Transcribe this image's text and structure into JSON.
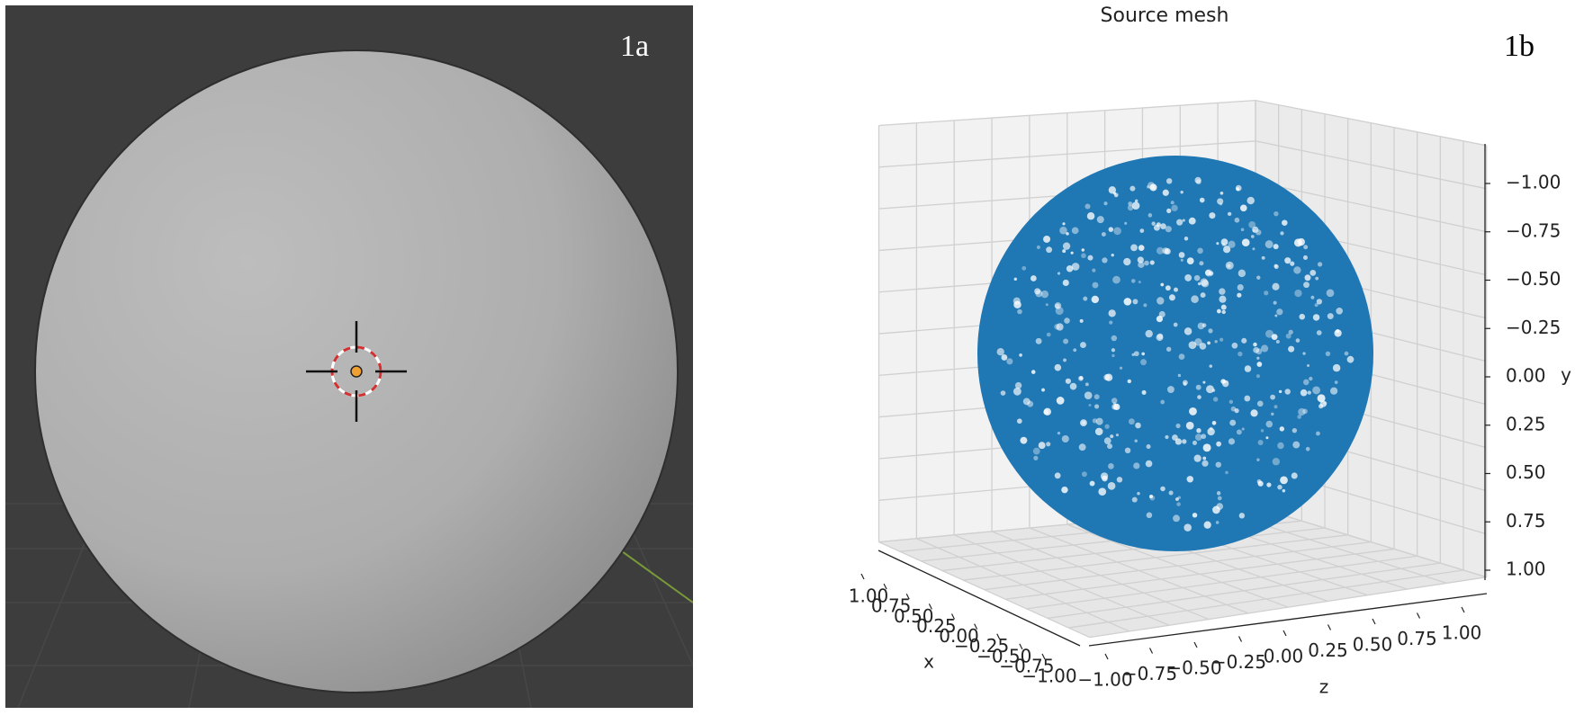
{
  "panels": [
    {
      "label": "1a"
    },
    {
      "label": "1b",
      "title": "Source mesh",
      "x_axis": {
        "label": "x",
        "ticks": [
          {
            "value": -1,
            "label": "−1.00"
          },
          {
            "value": -0.75,
            "label": "−0.75"
          },
          {
            "value": -0.5,
            "label": "−0.50"
          },
          {
            "value": -0.25,
            "label": "−0.25"
          },
          {
            "value": 0,
            "label": "0.00"
          },
          {
            "value": 0.25,
            "label": "0.25"
          },
          {
            "value": 0.5,
            "label": "0.50"
          },
          {
            "value": 0.75,
            "label": "0.75"
          },
          {
            "value": 1,
            "label": "1.00"
          }
        ]
      },
      "y_axis": {
        "label": "y",
        "ticks": [
          {
            "value": -1,
            "label": "−1.00"
          },
          {
            "value": -0.75,
            "label": "−0.75"
          },
          {
            "value": -0.5,
            "label": "−0.50"
          },
          {
            "value": -0.25,
            "label": "−0.25"
          },
          {
            "value": 0,
            "label": "0.00"
          },
          {
            "value": 0.25,
            "label": "0.25"
          },
          {
            "value": 0.5,
            "label": "0.50"
          },
          {
            "value": 0.75,
            "label": "0.75"
          },
          {
            "value": 1,
            "label": "1.00"
          }
        ]
      },
      "z_axis": {
        "label": "z",
        "ticks": [
          {
            "value": -1,
            "label": "−1.00"
          },
          {
            "value": -0.75,
            "label": "−0.75"
          },
          {
            "value": -0.5,
            "label": "−0.50"
          },
          {
            "value": -0.25,
            "label": "−0.25"
          },
          {
            "value": 0,
            "label": "0.00"
          },
          {
            "value": 0.25,
            "label": "0.25"
          },
          {
            "value": 0.5,
            "label": "0.50"
          },
          {
            "value": 0.75,
            "label": "0.75"
          },
          {
            "value": 1,
            "label": "1.00"
          }
        ]
      }
    }
  ]
}
